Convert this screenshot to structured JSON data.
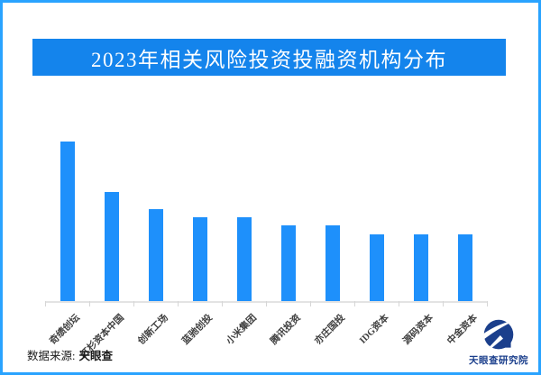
{
  "page": {
    "border_color": "#29A3FF",
    "background_color": "#FFFFFF"
  },
  "title": {
    "text": "2023年相关风险投资投融资机构分布",
    "bg_color": "#1484EC",
    "text_color": "#FFFFFF"
  },
  "chart_data": {
    "type": "bar",
    "title": "2023年相关风险投资投融资机构分布",
    "categories": [
      "奇绩创坛",
      "红杉资本中国",
      "创新工场",
      "蓝驰创投",
      "小米集团",
      "腾讯投资",
      "亦庄国投",
      "IDG资本",
      "源码资本",
      "中金资本"
    ],
    "values": [
      19,
      13,
      11,
      10,
      10,
      9,
      9,
      8,
      8,
      8
    ],
    "xlabel": "",
    "ylabel": "",
    "ylim": [
      0,
      20
    ],
    "grid": false,
    "legend": false,
    "y_axis_shown": false,
    "bar_color": "#1E90FB",
    "axis_color": "#E3E3E3",
    "label_color": "#3F3F3F",
    "label_rotation_deg": -45
  },
  "source": {
    "label": "数据来源:",
    "name": "天眼查"
  },
  "branding": {
    "org": "天眼查研究院",
    "logo_color": "#1B3F8C"
  }
}
